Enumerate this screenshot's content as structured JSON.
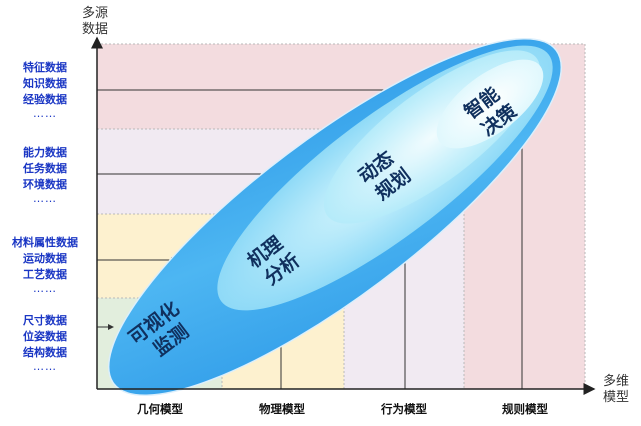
{
  "axes": {
    "y_label": [
      "多源",
      "数据"
    ],
    "x_label": [
      "多维",
      "模型"
    ]
  },
  "data_groups": [
    {
      "items": [
        "特征数据",
        "知识数据",
        "经验数据"
      ],
      "more": "……"
    },
    {
      "items": [
        "能力数据",
        "任务数据",
        "环境数据"
      ],
      "more": "……"
    },
    {
      "items": [
        "材料属性数据",
        "运动数据",
        "工艺数据"
      ],
      "more": "……"
    },
    {
      "items": [
        "尺寸数据",
        "位姿数据",
        "结构数据"
      ],
      "more": "……"
    }
  ],
  "model_categories": [
    "几何模型",
    "物理模型",
    "行为模型",
    "规则模型"
  ],
  "stages": [
    {
      "lines": [
        "可视化",
        "监测"
      ]
    },
    {
      "lines": [
        "机理",
        "分析"
      ]
    },
    {
      "lines": [
        "动态",
        "规划"
      ]
    },
    {
      "lines": [
        "智能",
        "决策"
      ]
    }
  ],
  "colors": {
    "data_text": "#1a36c4",
    "region_geometry": "#e2eedd",
    "region_physics": "#fdf1cf",
    "region_behavior": "#f1eaf2",
    "region_rules": "#f3dcdf",
    "ellipse_outer": "#3aa7ef",
    "ellipse_inner": "#c9f2fc"
  }
}
